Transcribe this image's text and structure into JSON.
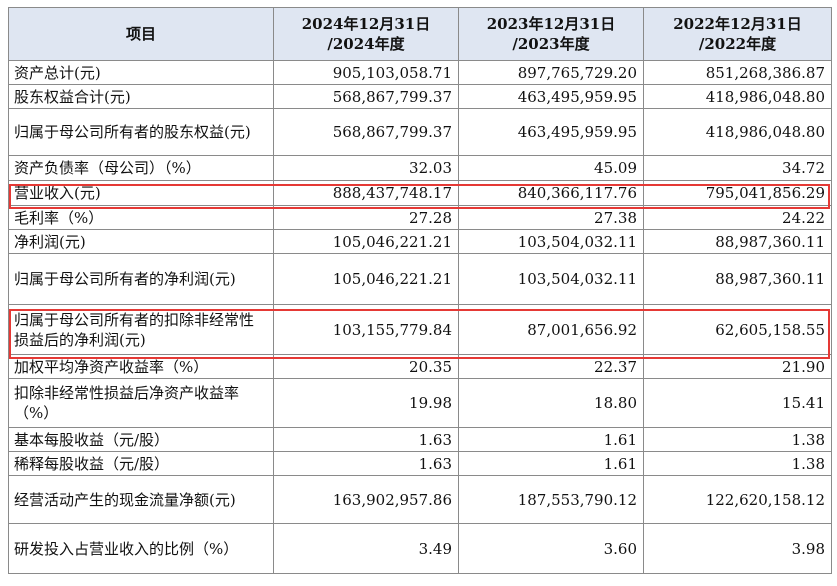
{
  "header": {
    "item": "项目",
    "periods": [
      {
        "line1": "2024年12月31日",
        "line2": "/2024年度"
      },
      {
        "line1": "2023年12月31日",
        "line2": "/2023年度"
      },
      {
        "line1": "2022年12月31日",
        "line2": "/2022年度"
      }
    ]
  },
  "rows": [
    {
      "label": "资产总计(元)",
      "values": [
        "905,103,058.71",
        "897,765,729.20",
        "851,268,386.87"
      ]
    },
    {
      "label": "股东权益合计(元)",
      "values": [
        "568,867,799.37",
        "463,495,959.95",
        "418,986,048.80"
      ]
    },
    {
      "label": "归属于母公司所有者的股东权益(元)",
      "values": [
        "568,867,799.37",
        "463,495,959.95",
        "418,986,048.80"
      ]
    },
    {
      "label": "资产负债率（母公司）（%）",
      "values": [
        "32.03",
        "45.09",
        "34.72"
      ]
    },
    {
      "label": "营业收入(元)",
      "values": [
        "888,437,748.17",
        "840,366,117.76",
        "795,041,856.29"
      ]
    },
    {
      "label": "毛利率（%）",
      "values": [
        "27.28",
        "27.38",
        "24.22"
      ]
    },
    {
      "label": "净利润(元)",
      "values": [
        "105,046,221.21",
        "103,504,032.11",
        "88,987,360.11"
      ]
    },
    {
      "label": "归属于母公司所有者的净利润(元)",
      "values": [
        "105,046,221.21",
        "103,504,032.11",
        "88,987,360.11"
      ]
    },
    {
      "label": "归属于母公司所有者的扣除非经常性损益后的净利润(元)",
      "values": [
        "103,155,779.84",
        "87,001,656.92",
        "62,605,158.55"
      ]
    },
    {
      "label": "加权平均净资产收益率（%）",
      "values": [
        "20.35",
        "22.37",
        "21.90"
      ]
    },
    {
      "label": "扣除非经常性损益后净资产收益率（%）",
      "values": [
        "19.98",
        "18.80",
        "15.41"
      ]
    },
    {
      "label": "基本每股收益（元/股）",
      "values": [
        "1.63",
        "1.61",
        "1.38"
      ]
    },
    {
      "label": "稀释每股收益（元/股）",
      "values": [
        "1.63",
        "1.61",
        "1.38"
      ]
    },
    {
      "label": "经营活动产生的现金流量净额(元)",
      "values": [
        "163,902,957.86",
        "187,553,790.12",
        "122,620,158.12"
      ]
    },
    {
      "label": "研发投入占营业收入的比例（%）",
      "values": [
        "3.49",
        "3.60",
        "3.98"
      ]
    }
  ],
  "highlight_color": "#e53935"
}
